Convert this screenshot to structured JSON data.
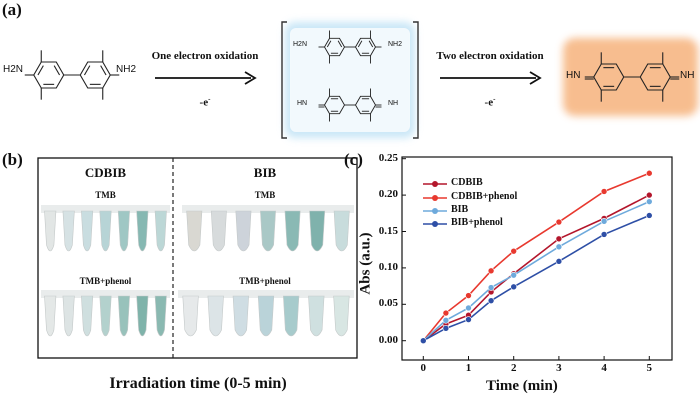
{
  "panel_a": {
    "label": "(a)",
    "reactant": {
      "left_group": "H2N",
      "right_group": "NH2"
    },
    "step1": {
      "label": "One electron oxidation",
      "electron": "-e",
      "electron_sup": "-"
    },
    "intermediate": {
      "upper": {
        "left_group": "H2N",
        "right_group": "NH2"
      },
      "lower": {
        "left_group": "HN",
        "right_group": "NH"
      },
      "glow_color": "#9fd3f0"
    },
    "step2": {
      "label": "Two electron oxidation",
      "electron": "-e",
      "electron_sup": "-"
    },
    "product": {
      "left_group": "HN",
      "right_group": "NH",
      "glow_color": "#f6b27c"
    }
  },
  "panel_b": {
    "label": "(b)",
    "columns": [
      {
        "title": "CDBIB",
        "row1_label": "TMB",
        "row2_label": "TMB+phenol"
      },
      {
        "title": "BIB",
        "row1_label": "TMB",
        "row2_label": "TMB+phenol"
      }
    ],
    "tube_colors": {
      "CDBIB_TMB": [
        "#e2e6e5",
        "#d6e2e4",
        "#c9dde0",
        "#b7d4d6",
        "#9fc7c4",
        "#86b8b2",
        "#bcd7d6"
      ],
      "CDBIB_TMB+phenol": [
        "#e4e8e7",
        "#dde4e4",
        "#cfdfdf",
        "#b3d1cd",
        "#98c2bb",
        "#7fb3aa",
        "#8ab9b1"
      ],
      "BIB_TMB": [
        "#d9d8d2",
        "#d7dbdc",
        "#cdd3da",
        "#a9c8c6",
        "#8ab9b4",
        "#7fb2ac",
        "#c8dcdc"
      ],
      "BIB_TMB+phenol": [
        "#e6e9ea",
        "#dce4e7",
        "#cfdde3",
        "#bad3d9",
        "#a7cbcc",
        "#cfe0e0",
        "#d8e6e3"
      ]
    },
    "xlabel": "Irradiation time (0-5 min)"
  },
  "chart_data": {
    "type": "line",
    "panel_label": "(c)",
    "xlabel": "Time (min)",
    "ylabel": "Abs (a.u.)",
    "xlim": [
      -0.5,
      5.5
    ],
    "ylim": [
      -0.015,
      0.25
    ],
    "xticks": [
      "0",
      "1",
      "2",
      "3",
      "4",
      "5"
    ],
    "yticks": [
      "0.00",
      "0.05",
      "0.10",
      "0.15",
      "0.20",
      "0.25"
    ],
    "legend_position": "top-left",
    "grid": false,
    "x": [
      0,
      0.5,
      1,
      1.5,
      2,
      3,
      4,
      5
    ],
    "series": [
      {
        "name": "CDBIB",
        "color": "#b3162c",
        "values": [
          0,
          0.023,
          0.035,
          0.067,
          0.092,
          0.14,
          0.168,
          0.2
        ]
      },
      {
        "name": "CDBIB+phenol",
        "color": "#e8392f",
        "values": [
          0,
          0.038,
          0.062,
          0.096,
          0.123,
          0.163,
          0.205,
          0.23
        ]
      },
      {
        "name": "BIB",
        "color": "#6eaadc",
        "values": [
          0,
          0.028,
          0.045,
          0.073,
          0.09,
          0.129,
          0.164,
          0.191
        ]
      },
      {
        "name": "BIB+phenol",
        "color": "#2e4fa6",
        "values": [
          0,
          0.017,
          0.029,
          0.055,
          0.074,
          0.109,
          0.146,
          0.172
        ]
      }
    ]
  }
}
